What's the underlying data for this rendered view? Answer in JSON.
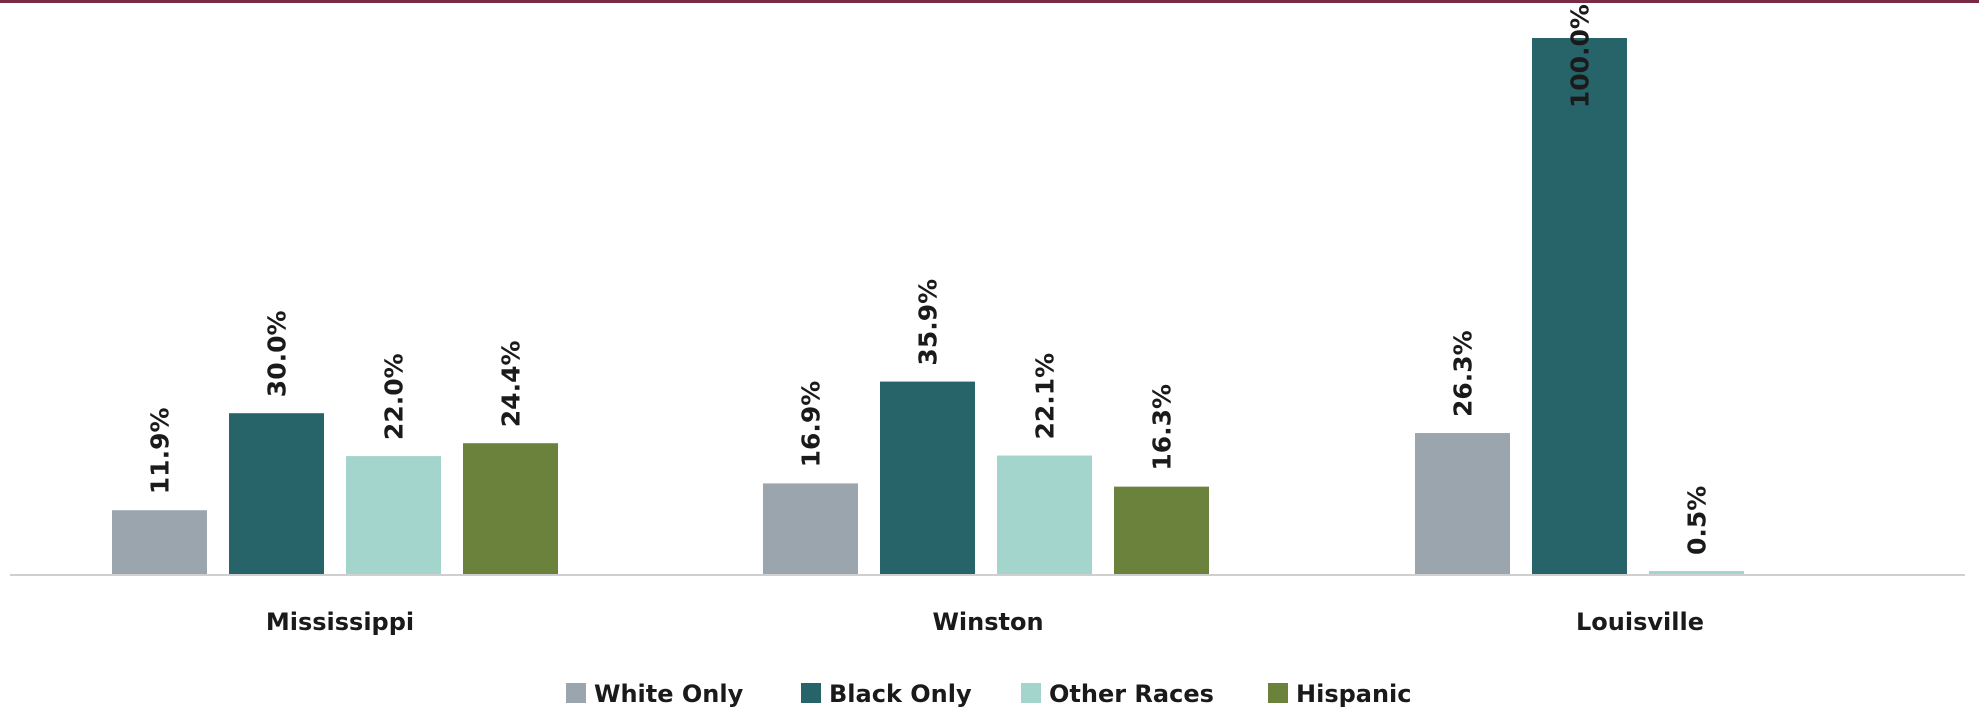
{
  "top_rule_color": "#7a2a45",
  "chart_data": {
    "type": "bar",
    "categories": [
      "Mississippi",
      "Winston",
      "Louisville"
    ],
    "series": [
      {
        "name": "White Only",
        "color": "#9ba5ae",
        "values": [
          11.9,
          16.9,
          26.3
        ]
      },
      {
        "name": "Black Only",
        "color": "#27646a",
        "values": [
          30.0,
          35.9,
          100.0
        ]
      },
      {
        "name": "Other Races",
        "color": "#a3d5cc",
        "values": [
          22.0,
          22.1,
          0.5
        ]
      },
      {
        "name": "Hispanic",
        "color": "#6b823c",
        "values": [
          24.4,
          16.3,
          null
        ]
      }
    ],
    "data_labels": [
      [
        "11.9%",
        "16.9%",
        "26.3%"
      ],
      [
        "30.0%",
        "35.9%",
        "100.0%"
      ],
      [
        "22.0%",
        "22.1%",
        "0.5%"
      ],
      [
        "24.4%",
        "16.3%",
        null
      ]
    ],
    "ylim": [
      0,
      100
    ],
    "grid": false,
    "legend_position": "bottom",
    "title": "",
    "xlabel": "",
    "ylabel": ""
  }
}
